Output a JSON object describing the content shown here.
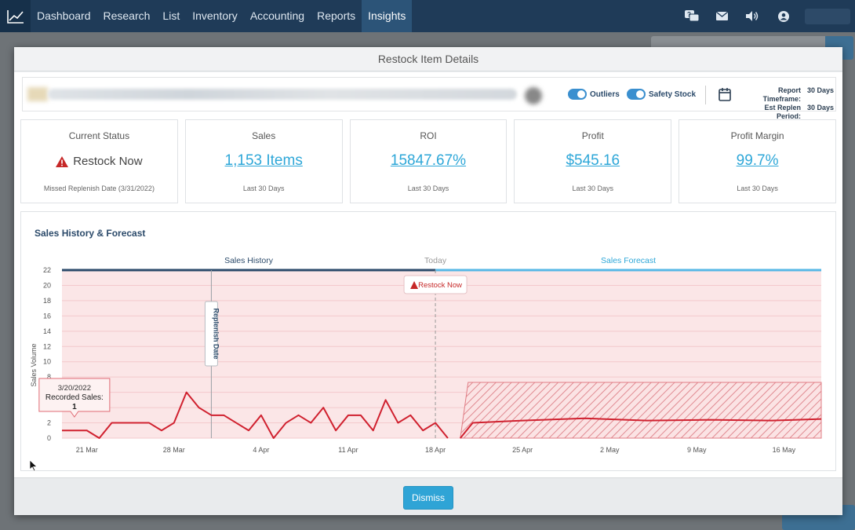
{
  "nav": {
    "items": [
      "Dashboard",
      "Research",
      "List",
      "Inventory",
      "Accounting",
      "Reports",
      "Insights"
    ],
    "active": "Insights",
    "icons": [
      "help-chat-icon",
      "mail-icon",
      "volume-icon",
      "user-icon"
    ]
  },
  "modal": {
    "title": "Restock Item Details",
    "toggles": {
      "outliers_label": "Outliers",
      "safety_stock_label": "Safety Stock"
    },
    "report": {
      "timeframe_label": "Report Timeframe:",
      "timeframe_value": "30 Days",
      "replen_label": "Est Replen Period:",
      "replen_value": "30 Days"
    },
    "cards": [
      {
        "title": "Current Status",
        "value": "Restock Now",
        "sub": "Missed Replenish Date (3/31/2022)"
      },
      {
        "title": "Sales",
        "value": "1,153 Items",
        "sub": "Last 30 Days"
      },
      {
        "title": "ROI",
        "value": "15847.67%",
        "sub": "Last 30 Days"
      },
      {
        "title": "Profit",
        "value": "$545.16",
        "sub": "Last 30 Days"
      },
      {
        "title": "Profit Margin",
        "value": "99.7%",
        "sub": "Last 30 Days"
      }
    ],
    "dismiss_label": "Dismiss"
  },
  "chart_data": {
    "type": "line",
    "title": "Sales History & Forecast",
    "ylabel": "Sales Volume",
    "ylim": [
      0,
      22
    ],
    "yticks": [
      0,
      2,
      4,
      6,
      8,
      10,
      12,
      14,
      16,
      18,
      20,
      22
    ],
    "xlim": [
      "2022-03-19",
      "2022-05-19"
    ],
    "xticks": [
      "21 Mar",
      "28 Mar",
      "4 Apr",
      "11 Apr",
      "18 Apr",
      "25 Apr",
      "2 May",
      "9 May",
      "16 May"
    ],
    "section_labels": {
      "history": "Sales History",
      "today": "Today",
      "forecast": "Sales Forecast"
    },
    "replenish_label": "Replenish Date",
    "replenish_date": "2022-03-31",
    "today_date": "2022-04-18",
    "restock_label": "Restock Now",
    "colors": {
      "line": "#d0212f",
      "band": "#fbe6e7",
      "history_bar": "#2b4a6a",
      "forecast_bar": "#56b7e6"
    },
    "series": [
      {
        "values": [
          [
            "2022-03-19",
            1
          ],
          [
            "2022-03-20",
            1
          ],
          [
            "2022-03-21",
            1
          ],
          [
            "2022-03-22",
            0
          ],
          [
            "2022-03-23",
            2
          ],
          [
            "2022-03-24",
            2
          ],
          [
            "2022-03-25",
            2
          ],
          [
            "2022-03-26",
            2
          ],
          [
            "2022-03-27",
            1
          ],
          [
            "2022-03-28",
            2
          ],
          [
            "2022-03-29",
            6
          ],
          [
            "2022-03-30",
            4
          ],
          [
            "2022-03-31",
            3
          ],
          [
            "2022-04-01",
            3
          ],
          [
            "2022-04-02",
            2
          ],
          [
            "2022-04-03",
            1
          ],
          [
            "2022-04-04",
            3
          ],
          [
            "2022-04-05",
            0
          ],
          [
            "2022-04-06",
            2
          ],
          [
            "2022-04-07",
            3
          ],
          [
            "2022-04-08",
            2
          ],
          [
            "2022-04-09",
            4
          ],
          [
            "2022-04-10",
            1
          ],
          [
            "2022-04-11",
            3
          ],
          [
            "2022-04-12",
            3
          ],
          [
            "2022-04-13",
            1
          ],
          [
            "2022-04-14",
            5
          ],
          [
            "2022-04-15",
            2
          ],
          [
            "2022-04-16",
            3
          ],
          [
            "2022-04-17",
            1
          ],
          [
            "2022-04-18",
            2
          ],
          [
            "2022-04-19",
            0
          ]
        ]
      },
      {
        "values": [
          [
            "2022-04-20",
            0
          ],
          [
            "2022-04-21",
            2
          ],
          [
            "2022-04-25",
            2.3
          ],
          [
            "2022-04-30",
            2.6
          ],
          [
            "2022-05-05",
            2.3
          ],
          [
            "2022-05-10",
            2.4
          ],
          [
            "2022-05-15",
            2.3
          ],
          [
            "2022-05-19",
            2.5
          ]
        ],
        "band": [
          0,
          7.3
        ]
      }
    ],
    "tooltip": {
      "date": "3/20/2022",
      "label": "Recorded Sales:",
      "value": "1"
    }
  }
}
